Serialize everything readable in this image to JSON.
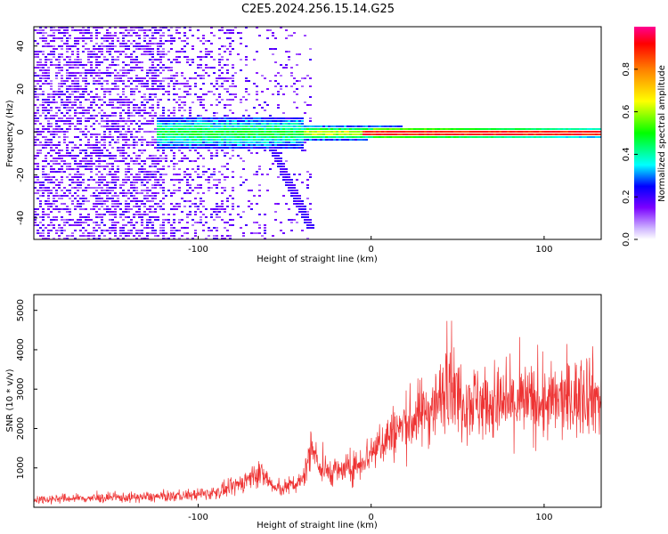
{
  "title": "C2E5.2024.256.15.14.G25",
  "chart_data": [
    {
      "type": "heatmap",
      "xlabel": "Height of straight line (km)",
      "ylabel": "Frequency (Hz)",
      "xlim": [
        -195,
        133
      ],
      "ylim": [
        -50,
        49
      ],
      "xticks": [
        -100,
        0,
        100
      ],
      "yticks": [
        -40,
        -20,
        0,
        20,
        40
      ],
      "colorbar": {
        "label": "Normalized spectral amplitude",
        "range": [
          0,
          1
        ],
        "ticks": [
          0.0,
          0.2,
          0.4,
          0.6,
          0.8
        ]
      },
      "description_values": {
        "noise_region_x": [
          -195,
          -35
        ],
        "signal_band_center_freq_hz": 0,
        "signal_start_x": -125,
        "peak_amplitude_region_x": [
          0,
          133
        ]
      }
    },
    {
      "type": "line",
      "xlabel": "Height of straight line (km)",
      "ylabel": "SNR (10 * v/v)",
      "xlim": [
        -195,
        133
      ],
      "ylim": [
        0,
        5400
      ],
      "xticks": [
        -100,
        0,
        100
      ],
      "yticks": [
        1000,
        2000,
        3000,
        4000,
        5000
      ],
      "series": [
        {
          "color": "#ee3333",
          "x": [
            -195,
            -180,
            -160,
            -140,
            -120,
            -100,
            -90,
            -80,
            -70,
            -65,
            -60,
            -55,
            -50,
            -40,
            -33,
            -30,
            -20,
            -10,
            0,
            10,
            20,
            30,
            40,
            45,
            50,
            60,
            70,
            80,
            90,
            100,
            110,
            120,
            125,
            133
          ],
          "y": [
            200,
            220,
            230,
            250,
            270,
            320,
            380,
            500,
            750,
            900,
            700,
            450,
            500,
            650,
            1700,
            950,
            900,
            1000,
            1400,
            1800,
            2100,
            2400,
            2700,
            3500,
            2800,
            2700,
            2600,
            2600,
            2700,
            2600,
            2700,
            2800,
            3000,
            2700
          ]
        }
      ]
    }
  ]
}
